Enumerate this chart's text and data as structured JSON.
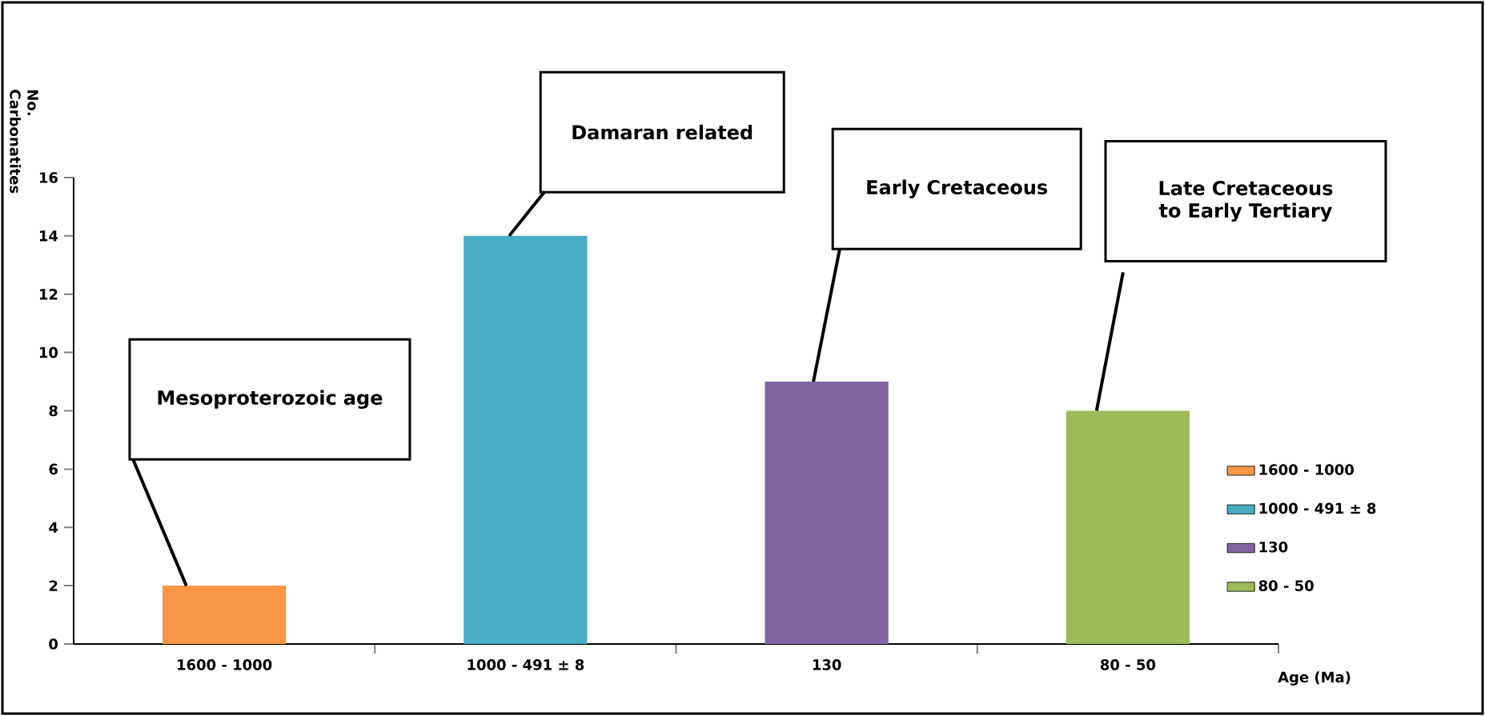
{
  "chart_data": {
    "type": "bar",
    "xlabel": "Age (Ma)",
    "ylabel": "No. Carbonatites",
    "categories": [
      "1600 - 1000",
      "1000 - 491 ± 8",
      "130",
      "80 - 50"
    ],
    "series": [
      {
        "name": "1600 - 1000",
        "color": "#f79646",
        "values": [
          2,
          null,
          null,
          null
        ]
      },
      {
        "name": "1000 - 491 ± 8",
        "color": "#4bacc6",
        "values": [
          null,
          14,
          null,
          null
        ]
      },
      {
        "name": "130",
        "color": "#8064a2",
        "values": [
          null,
          null,
          9,
          null
        ]
      },
      {
        "name": "80 - 50",
        "color": "#9bbb59",
        "values": [
          null,
          null,
          null,
          8
        ]
      }
    ],
    "ylim": [
      0,
      16
    ],
    "yticks": [
      0,
      2,
      4,
      6,
      8,
      10,
      12,
      14,
      16
    ],
    "legend": "right",
    "annotations": [
      "Mesoproterozoic age",
      "Damaran related",
      "Early Cretaceous",
      "Late Cretaceous to Early Tertiary"
    ]
  }
}
